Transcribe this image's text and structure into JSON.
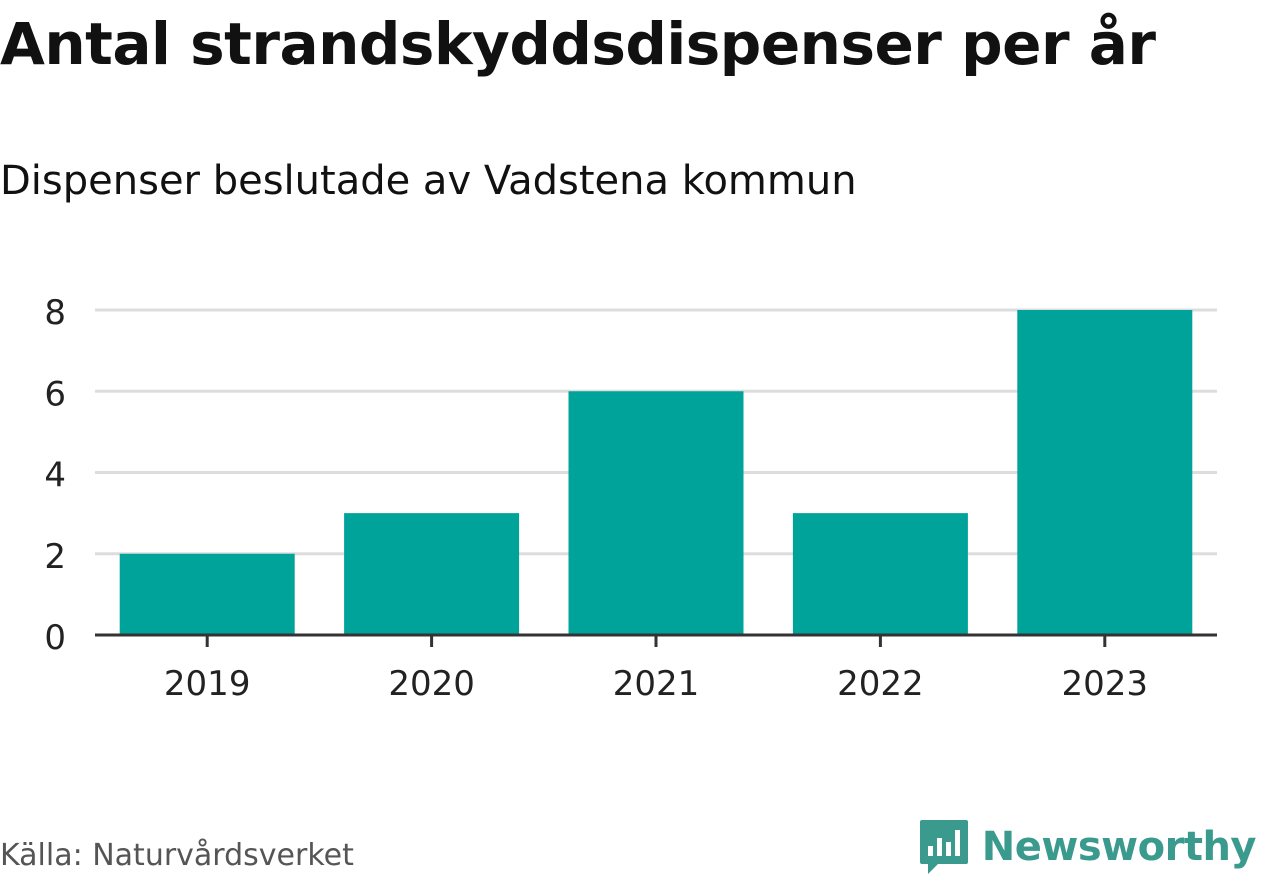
{
  "header": {
    "title": "Antal strandskyddsdispenser per år",
    "subtitle": "Dispenser beslutade av Vadstena kommun"
  },
  "footer": {
    "source": "Källa: Naturvårdsverket",
    "brand": "Newsworthy",
    "brand_icon": "newsworthy-logo-icon"
  },
  "colors": {
    "bar": "#00a39a",
    "grid": "#dddddd",
    "axis": "#333333",
    "brand": "#3a9a8d"
  },
  "chart_data": {
    "type": "bar",
    "title": "Antal strandskyddsdispenser per år",
    "subtitle": "Dispenser beslutade av Vadstena kommun",
    "categories": [
      "2019",
      "2020",
      "2021",
      "2022",
      "2023"
    ],
    "values": [
      2,
      3,
      6,
      3,
      8
    ],
    "ylim": [
      0,
      8
    ],
    "yticks": [
      0,
      2,
      4,
      6,
      8
    ],
    "grid": true,
    "legend": "none"
  }
}
